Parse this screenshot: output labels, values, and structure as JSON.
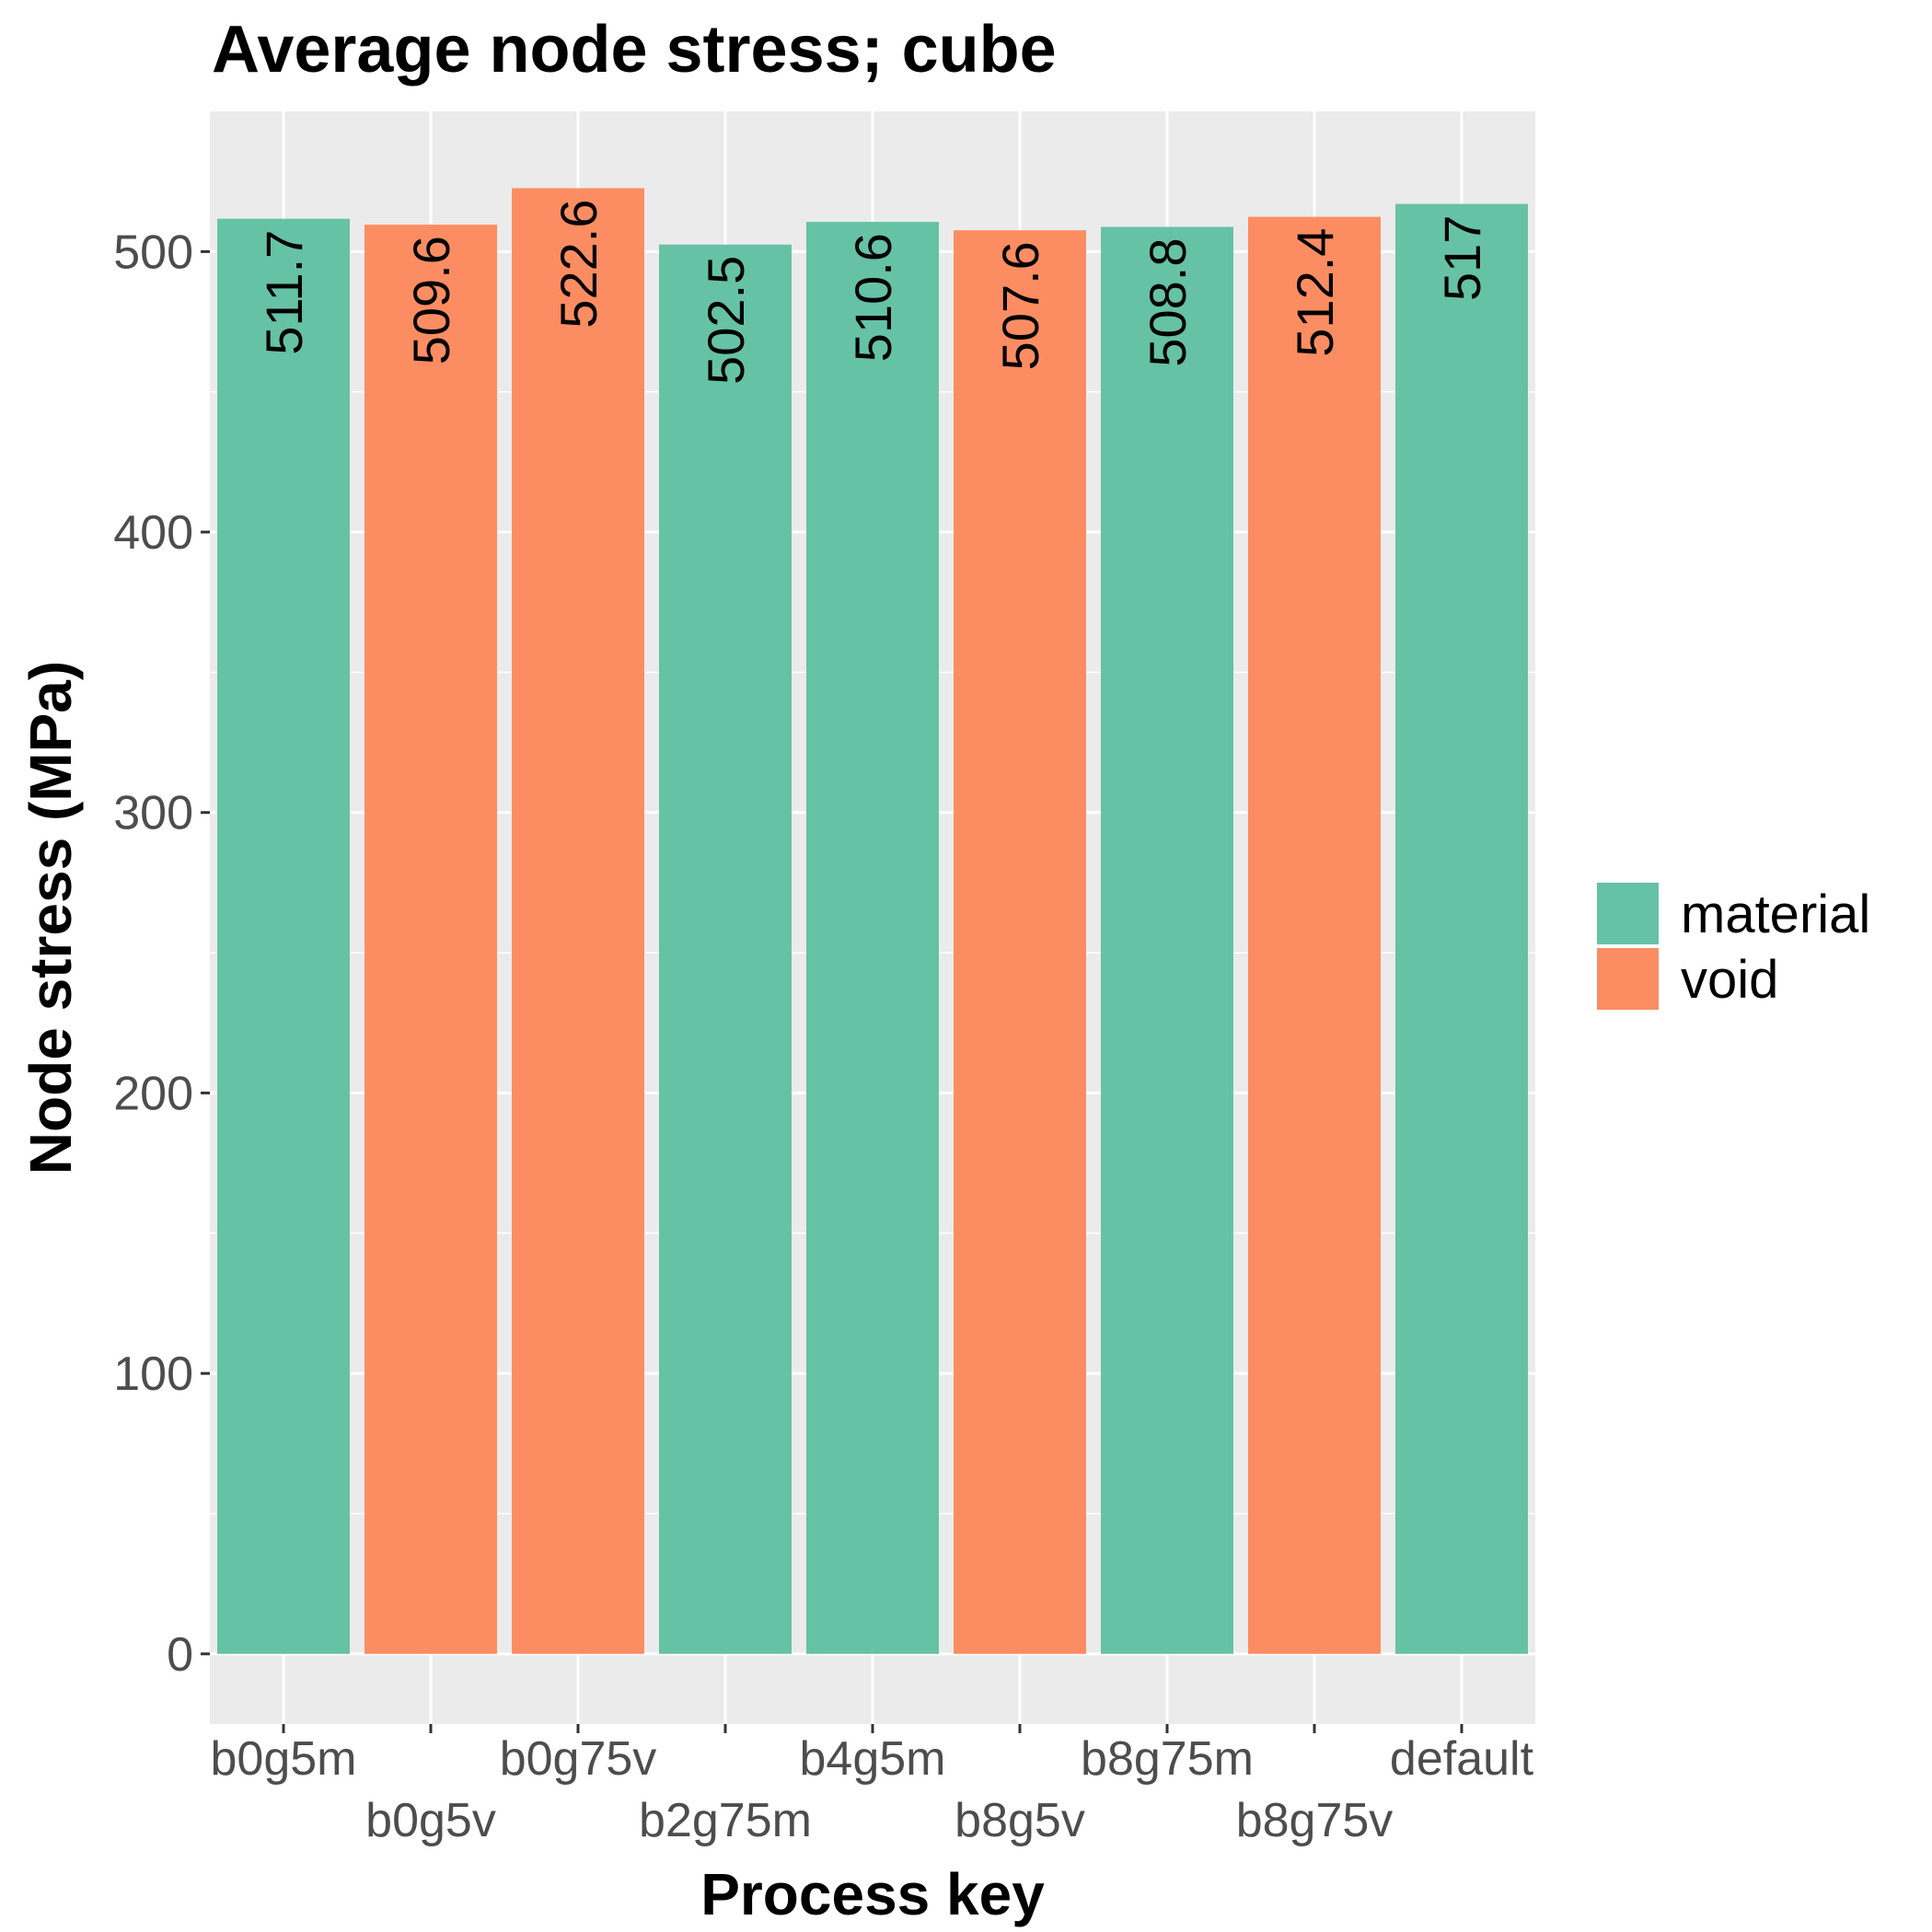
{
  "chart_data": {
    "type": "bar",
    "title": "Average node stress; cube",
    "xlabel": "Process key",
    "ylabel": "Node stress (MPa)",
    "categories": [
      "b0g5m",
      "b0g5v",
      "b0g75v",
      "b2g75m",
      "b4g5m",
      "b8g5v",
      "b8g75m",
      "b8g75v",
      "default"
    ],
    "values": [
      511.7,
      509.6,
      522.6,
      502.5,
      510.6,
      507.6,
      508.8,
      512.4,
      517
    ],
    "value_labels": [
      "511.7",
      "509.6",
      "522.6",
      "502.5",
      "510.6",
      "507.6",
      "508.8",
      "512.4",
      "517"
    ],
    "groups": [
      "material",
      "void",
      "void",
      "material",
      "material",
      "void",
      "material",
      "void",
      "material"
    ],
    "ylim": [
      -25,
      550
    ],
    "yticks": [
      0,
      100,
      200,
      300,
      400,
      500
    ],
    "grid": true,
    "legend": {
      "position": "right",
      "entries": [
        {
          "name": "material",
          "color": "#66c2a5"
        },
        {
          "name": "void",
          "color": "#fc8d62"
        }
      ]
    },
    "colors": {
      "material": "#66c2a5",
      "void": "#fc8d62"
    }
  }
}
